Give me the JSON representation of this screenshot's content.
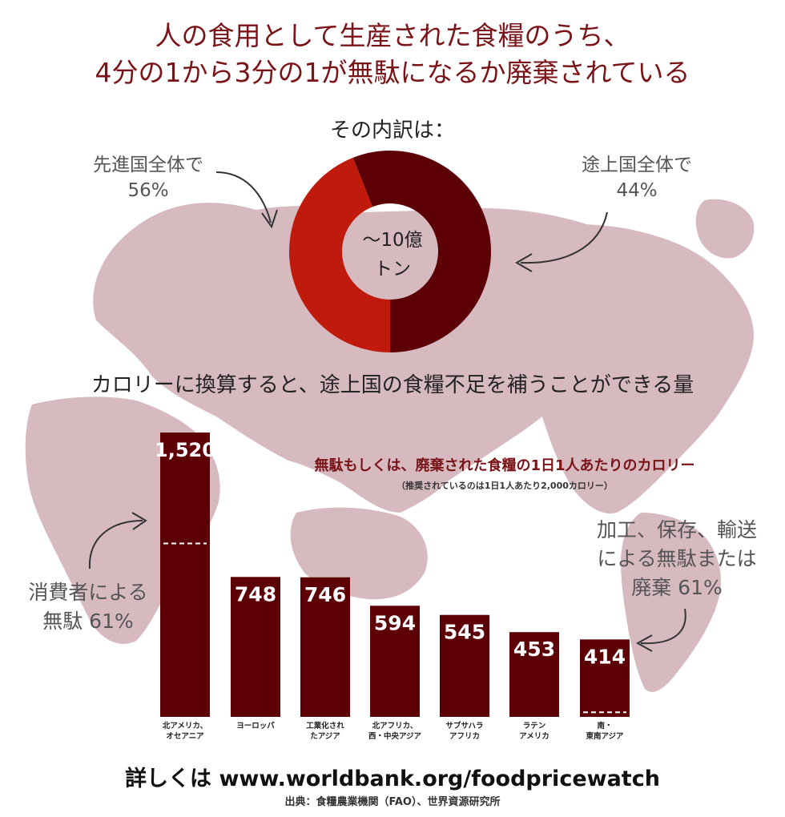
{
  "title": {
    "line1": "人の食用として生産された食糧のうち、",
    "line2": "4分の1から3分の1が無駄になるか廃棄されている"
  },
  "donut_header": "その内訳は：",
  "donut_center": {
    "line1": "〜10億",
    "line2": "トン"
  },
  "callouts": {
    "developed_label": "先進国全体で",
    "developed_value": "56%",
    "developing_label": "途上国全体で",
    "developing_value": "44%",
    "consumer_line1": "消費者による",
    "consumer_line2": "無駄 61%",
    "processing_line1": "加工、保存、輸送",
    "processing_line2": "による無駄または",
    "processing_line3": "廃棄 61%"
  },
  "calorie_heading": "カロリーに換算すると、途上国の食糧不足を補うことができる量",
  "bar_heading": "無駄もしくは、廃棄された食糧の1日1人あたりのカロリー",
  "bar_note": "（推奨されているのは1日1人あたり2,000カロリー）",
  "footer": "詳しくは www.worldbank.org/foodpricewatch",
  "source": "出典：食糧農業機関（FAO）、世界資源研究所",
  "colors": {
    "dark_red": "#5c0006",
    "bright_red": "#c01a0c",
    "title_red": "#7a1418",
    "map": "#c9a7ae"
  },
  "chart_data": [
    {
      "type": "pie",
      "slices": [
        {
          "name": "先進国全体で",
          "value": 56,
          "color": "#5c0006"
        },
        {
          "name": "途上国全体で",
          "value": 44,
          "color": "#c01a0c"
        }
      ],
      "center_text": "〜10億トン"
    },
    {
      "type": "bar",
      "title": "無駄もしくは、廃棄された食糧の1日1人あたりのカロリー",
      "categories": [
        [
          "北アメリカ、",
          "オセアニア"
        ],
        [
          "ヨーロッパ"
        ],
        [
          "工業化され",
          "たアジア"
        ],
        [
          "北アフリカ、",
          "西・中央アジア"
        ],
        [
          "サブサハラ",
          "アフリカ"
        ],
        [
          "ラテン",
          "アメリカ"
        ],
        [
          "南・",
          "東南アジア"
        ]
      ],
      "values": [
        1520,
        748,
        746,
        594,
        545,
        453,
        414
      ],
      "value_labels": [
        "1,520",
        "748",
        "746",
        "594",
        "545",
        "453",
        "414"
      ],
      "consumer_share": [
        0.61,
        null,
        null,
        null,
        null,
        null,
        0.06
      ],
      "ylim": [
        0,
        1600
      ]
    }
  ]
}
